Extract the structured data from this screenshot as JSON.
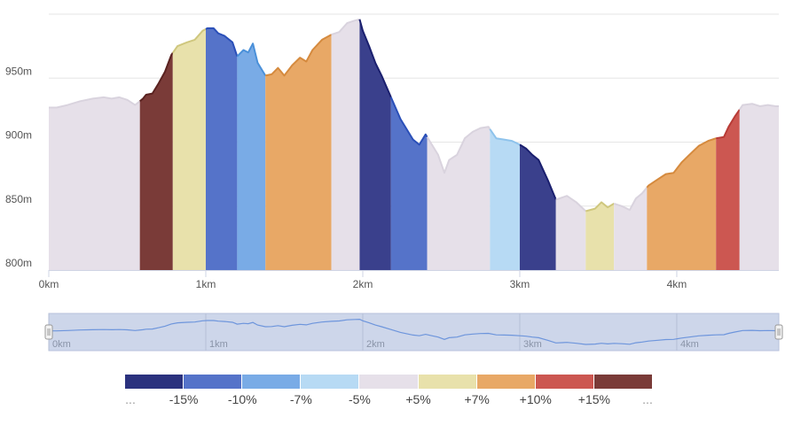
{
  "chart_data": {
    "type": "area",
    "x_unit": "km",
    "y_unit": "m",
    "xlim": [
      0,
      4.65
    ],
    "ylim": [
      800,
      1000
    ],
    "x_ticks": [
      0,
      1,
      2,
      3,
      4
    ],
    "x_tick_labels": [
      "0km",
      "1km",
      "2km",
      "3km",
      "4km"
    ],
    "y_ticks": [
      800,
      850,
      900,
      950
    ],
    "y_tick_labels": [
      "800m",
      "850m",
      "900m",
      "950m"
    ],
    "grid": true,
    "profile": [
      [
        0.0,
        927
      ],
      [
        0.05,
        927
      ],
      [
        0.12,
        929
      ],
      [
        0.2,
        932
      ],
      [
        0.28,
        934
      ],
      [
        0.35,
        935
      ],
      [
        0.4,
        934
      ],
      [
        0.45,
        935
      ],
      [
        0.5,
        933
      ],
      [
        0.55,
        929
      ],
      [
        0.6,
        934
      ],
      [
        0.62,
        937
      ],
      [
        0.66,
        938
      ],
      [
        0.7,
        946
      ],
      [
        0.74,
        955
      ],
      [
        0.78,
        968
      ],
      [
        0.82,
        975
      ],
      [
        0.88,
        978
      ],
      [
        0.93,
        980
      ],
      [
        0.98,
        987
      ],
      [
        1.01,
        989
      ],
      [
        1.05,
        989
      ],
      [
        1.08,
        985
      ],
      [
        1.12,
        983
      ],
      [
        1.17,
        978
      ],
      [
        1.2,
        967
      ],
      [
        1.24,
        972
      ],
      [
        1.27,
        970
      ],
      [
        1.3,
        977
      ],
      [
        1.33,
        962
      ],
      [
        1.38,
        952
      ],
      [
        1.42,
        953
      ],
      [
        1.46,
        958
      ],
      [
        1.5,
        952
      ],
      [
        1.55,
        960
      ],
      [
        1.6,
        966
      ],
      [
        1.64,
        963
      ],
      [
        1.68,
        972
      ],
      [
        1.74,
        980
      ],
      [
        1.8,
        984
      ],
      [
        1.85,
        986
      ],
      [
        1.9,
        993
      ],
      [
        1.95,
        995
      ],
      [
        1.98,
        996
      ],
      [
        2.0,
        987
      ],
      [
        2.04,
        975
      ],
      [
        2.08,
        962
      ],
      [
        2.12,
        952
      ],
      [
        2.18,
        935
      ],
      [
        2.24,
        918
      ],
      [
        2.28,
        910
      ],
      [
        2.32,
        902
      ],
      [
        2.36,
        898
      ],
      [
        2.4,
        906
      ],
      [
        2.44,
        898
      ],
      [
        2.48,
        890
      ],
      [
        2.52,
        876
      ],
      [
        2.55,
        886
      ],
      [
        2.6,
        890
      ],
      [
        2.65,
        903
      ],
      [
        2.7,
        908
      ],
      [
        2.75,
        911
      ],
      [
        2.8,
        912
      ],
      [
        2.85,
        903
      ],
      [
        2.9,
        902
      ],
      [
        2.95,
        901
      ],
      [
        3.0,
        898
      ],
      [
        3.04,
        895
      ],
      [
        3.08,
        890
      ],
      [
        3.12,
        886
      ],
      [
        3.18,
        870
      ],
      [
        3.23,
        855
      ],
      [
        3.3,
        858
      ],
      [
        3.36,
        853
      ],
      [
        3.42,
        846
      ],
      [
        3.48,
        848
      ],
      [
        3.52,
        853
      ],
      [
        3.56,
        849
      ],
      [
        3.6,
        852
      ],
      [
        3.65,
        850
      ],
      [
        3.7,
        847
      ],
      [
        3.74,
        856
      ],
      [
        3.78,
        860
      ],
      [
        3.82,
        866
      ],
      [
        3.88,
        871
      ],
      [
        3.93,
        875
      ],
      [
        3.98,
        876
      ],
      [
        4.03,
        884
      ],
      [
        4.08,
        890
      ],
      [
        4.14,
        897
      ],
      [
        4.2,
        901
      ],
      [
        4.25,
        903
      ],
      [
        4.3,
        904
      ],
      [
        4.33,
        912
      ],
      [
        4.37,
        920
      ],
      [
        4.42,
        929
      ],
      [
        4.48,
        930
      ],
      [
        4.53,
        928
      ],
      [
        4.58,
        929
      ],
      [
        4.63,
        928
      ],
      [
        4.65,
        928
      ]
    ],
    "segments": [
      {
        "from": 0.0,
        "to": 0.58,
        "class": "+5%"
      },
      {
        "from": 0.58,
        "to": 0.79,
        "class": "max"
      },
      {
        "from": 0.79,
        "to": 1.0,
        "class": "+7%"
      },
      {
        "from": 1.0,
        "to": 1.2,
        "class": "-10%"
      },
      {
        "from": 1.2,
        "to": 1.38,
        "class": "-7%"
      },
      {
        "from": 1.38,
        "to": 1.8,
        "class": "+10%"
      },
      {
        "from": 1.8,
        "to": 1.98,
        "class": "+5%"
      },
      {
        "from": 1.98,
        "to": 2.18,
        "class": "-15%"
      },
      {
        "from": 2.18,
        "to": 2.41,
        "class": "-10%"
      },
      {
        "from": 2.41,
        "to": 2.81,
        "class": "+5%"
      },
      {
        "from": 2.81,
        "to": 3.0,
        "class": "-5%"
      },
      {
        "from": 3.0,
        "to": 3.23,
        "class": "-15%"
      },
      {
        "from": 3.23,
        "to": 3.42,
        "class": "+5%"
      },
      {
        "from": 3.42,
        "to": 3.6,
        "class": "+7%"
      },
      {
        "from": 3.6,
        "to": 3.81,
        "class": "+5%"
      },
      {
        "from": 3.81,
        "to": 4.25,
        "class": "+10%"
      },
      {
        "from": 4.25,
        "to": 4.4,
        "class": "+15%"
      },
      {
        "from": 4.4,
        "to": 4.65,
        "class": "+5%"
      }
    ],
    "colors": {
      "min": "#2b327e",
      "-15%": "#3a408c",
      "-10%": "#5573c9",
      "-7%": "#79abe6",
      "-5%": "#b7daf4",
      "+5%": "#e6e0e9",
      "+7%": "#e8e1ab",
      "+10%": "#e8a866",
      "+15%": "#cc5751",
      "max": "#7a3b38"
    },
    "outline_colors": {
      "min": "#1a1f5e",
      "-15%": "#1a1f6e",
      "-10%": "#2a4fb8",
      "-7%": "#4a90d9",
      "-5%": "#8ec3ec",
      "+5%": "#d9d3de",
      "+7%": "#cfc77e",
      "+10%": "#d58a3e",
      "+15%": "#b83b36",
      "max": "#5a2220"
    },
    "legend": {
      "colors": [
        "#2b327e",
        "#5573c9",
        "#79abe6",
        "#b7daf4",
        "#e6e0e9",
        "#e8e1ab",
        "#e8a866",
        "#cc5751",
        "#7a3b38"
      ],
      "labels": [
        "...",
        "-15%",
        "-10%",
        "-7%",
        "-5%",
        "+5%",
        "+7%",
        "+10%",
        "+15%",
        "..."
      ]
    },
    "navigator": {
      "x_ticks": [
        0,
        1,
        2,
        3,
        4
      ],
      "x_tick_labels": [
        "0km",
        "1km",
        "2km",
        "3km",
        "4km"
      ],
      "line_color": "#6d95dc",
      "mask_color": "#cdd6ea"
    }
  }
}
